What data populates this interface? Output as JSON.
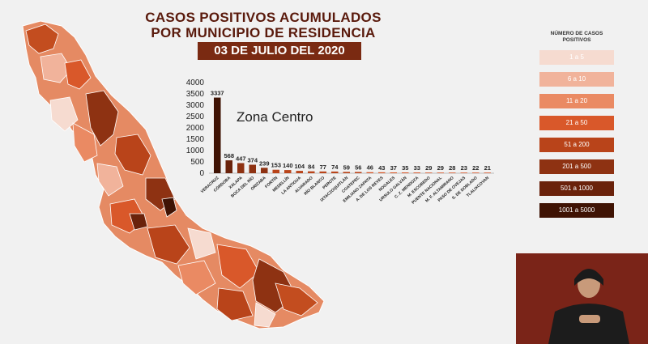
{
  "header": {
    "title_line1": "CASOS POSITIVOS ACUMULADOS",
    "title_line2": "POR MUNICIPIO DE RESIDENCIA",
    "date": "03 DE JULIO DEL 2020"
  },
  "legend": {
    "title_line1": "NÚMERO DE CASOS",
    "title_line2": "POSITIVOS",
    "items": [
      {
        "label": "1 a 5",
        "color": "#f6dbd0",
        "text_color": "#ffffff"
      },
      {
        "label": "6 a 10",
        "color": "#f1b39b",
        "text_color": "#ffffff"
      },
      {
        "label": "11 a 20",
        "color": "#ea8a63",
        "text_color": "#ffffff"
      },
      {
        "label": "21 a 50",
        "color": "#d9582a",
        "text_color": "#ffffff"
      },
      {
        "label": "51 a 200",
        "color": "#b9441a",
        "text_color": "#ffffff"
      },
      {
        "label": "201 a 500",
        "color": "#8e3212",
        "text_color": "#ffffff"
      },
      {
        "label": "501 a 1000",
        "color": "#6a220b",
        "text_color": "#ffffff"
      },
      {
        "label": "1001 a 5000",
        "color": "#3f1304",
        "text_color": "#ffffff"
      }
    ]
  },
  "chart_data": {
    "type": "bar",
    "title": "Zona Centro",
    "ylim": [
      0,
      4000
    ],
    "yticks": [
      0,
      500,
      1000,
      1500,
      2000,
      2500,
      3000,
      3500,
      4000
    ],
    "categories": [
      "VERACRUZ",
      "CÓRDOBA",
      "XALAPA",
      "BOCA DEL RÍO",
      "ORIZABA",
      "FORTÍN",
      "MEDELLÍN",
      "LA ANTIGUA",
      "ALVARADO",
      "RÍO BLANCO",
      "PEROTE",
      "IXTACZOQUITLÁN",
      "COATEPEC",
      "EMILIANO ZAPATA",
      "A. DE LOS REYES",
      "NOGALES",
      "URSULO GALVÁN",
      "C. Z. MENDOZA",
      "M. ESCOBEDO",
      "PUENTE NACIONAL",
      "M. F. ALTAMIRANO",
      "PASO DE OVEJAS",
      "S. DE DOBLADO",
      "TLALIXCOYAN"
    ],
    "values": [
      3337,
      568,
      447,
      374,
      239,
      153,
      140,
      104,
      84,
      77,
      74,
      59,
      56,
      46,
      43,
      37,
      35,
      33,
      29,
      29,
      28,
      23,
      22,
      21
    ],
    "bar_colors": [
      "#3f1304",
      "#6a220b",
      "#8e3212",
      "#8e3212",
      "#8e3212",
      "#b9441a",
      "#b9441a",
      "#b9441a",
      "#b9441a",
      "#b9441a",
      "#b9441a",
      "#b9441a",
      "#b9441a",
      "#d9582a",
      "#d9582a",
      "#d9582a",
      "#d9582a",
      "#d9582a",
      "#d9582a",
      "#d9582a",
      "#d9582a",
      "#d9582a",
      "#d9582a",
      "#d9582a"
    ]
  }
}
